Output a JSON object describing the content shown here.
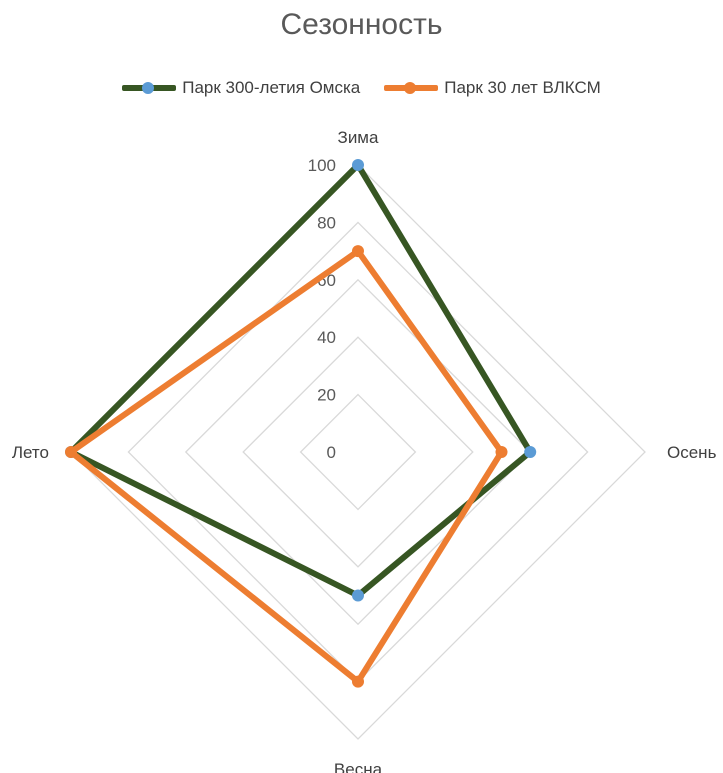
{
  "chart_data": {
    "type": "radar",
    "title": "Сезонность",
    "categories": [
      "Зима",
      "Осень",
      "Весна",
      "Лето"
    ],
    "series": [
      {
        "name": "Парк 300-летия Омска",
        "values": [
          100,
          60,
          50,
          100
        ],
        "line_color": "#375623",
        "marker_color": "#5B9BD5"
      },
      {
        "name": "Парк 30 лет ВЛКСМ",
        "values": [
          70,
          50,
          80,
          100
        ],
        "line_color": "#ED7D31",
        "marker_color": "#ED7D31"
      }
    ],
    "r_ticks": [
      "0",
      "20",
      "40",
      "60",
      "80",
      "100"
    ],
    "r_range": [
      0,
      100
    ],
    "legend_position": "top",
    "grid": true,
    "grid_color": "#D9D9D9"
  }
}
